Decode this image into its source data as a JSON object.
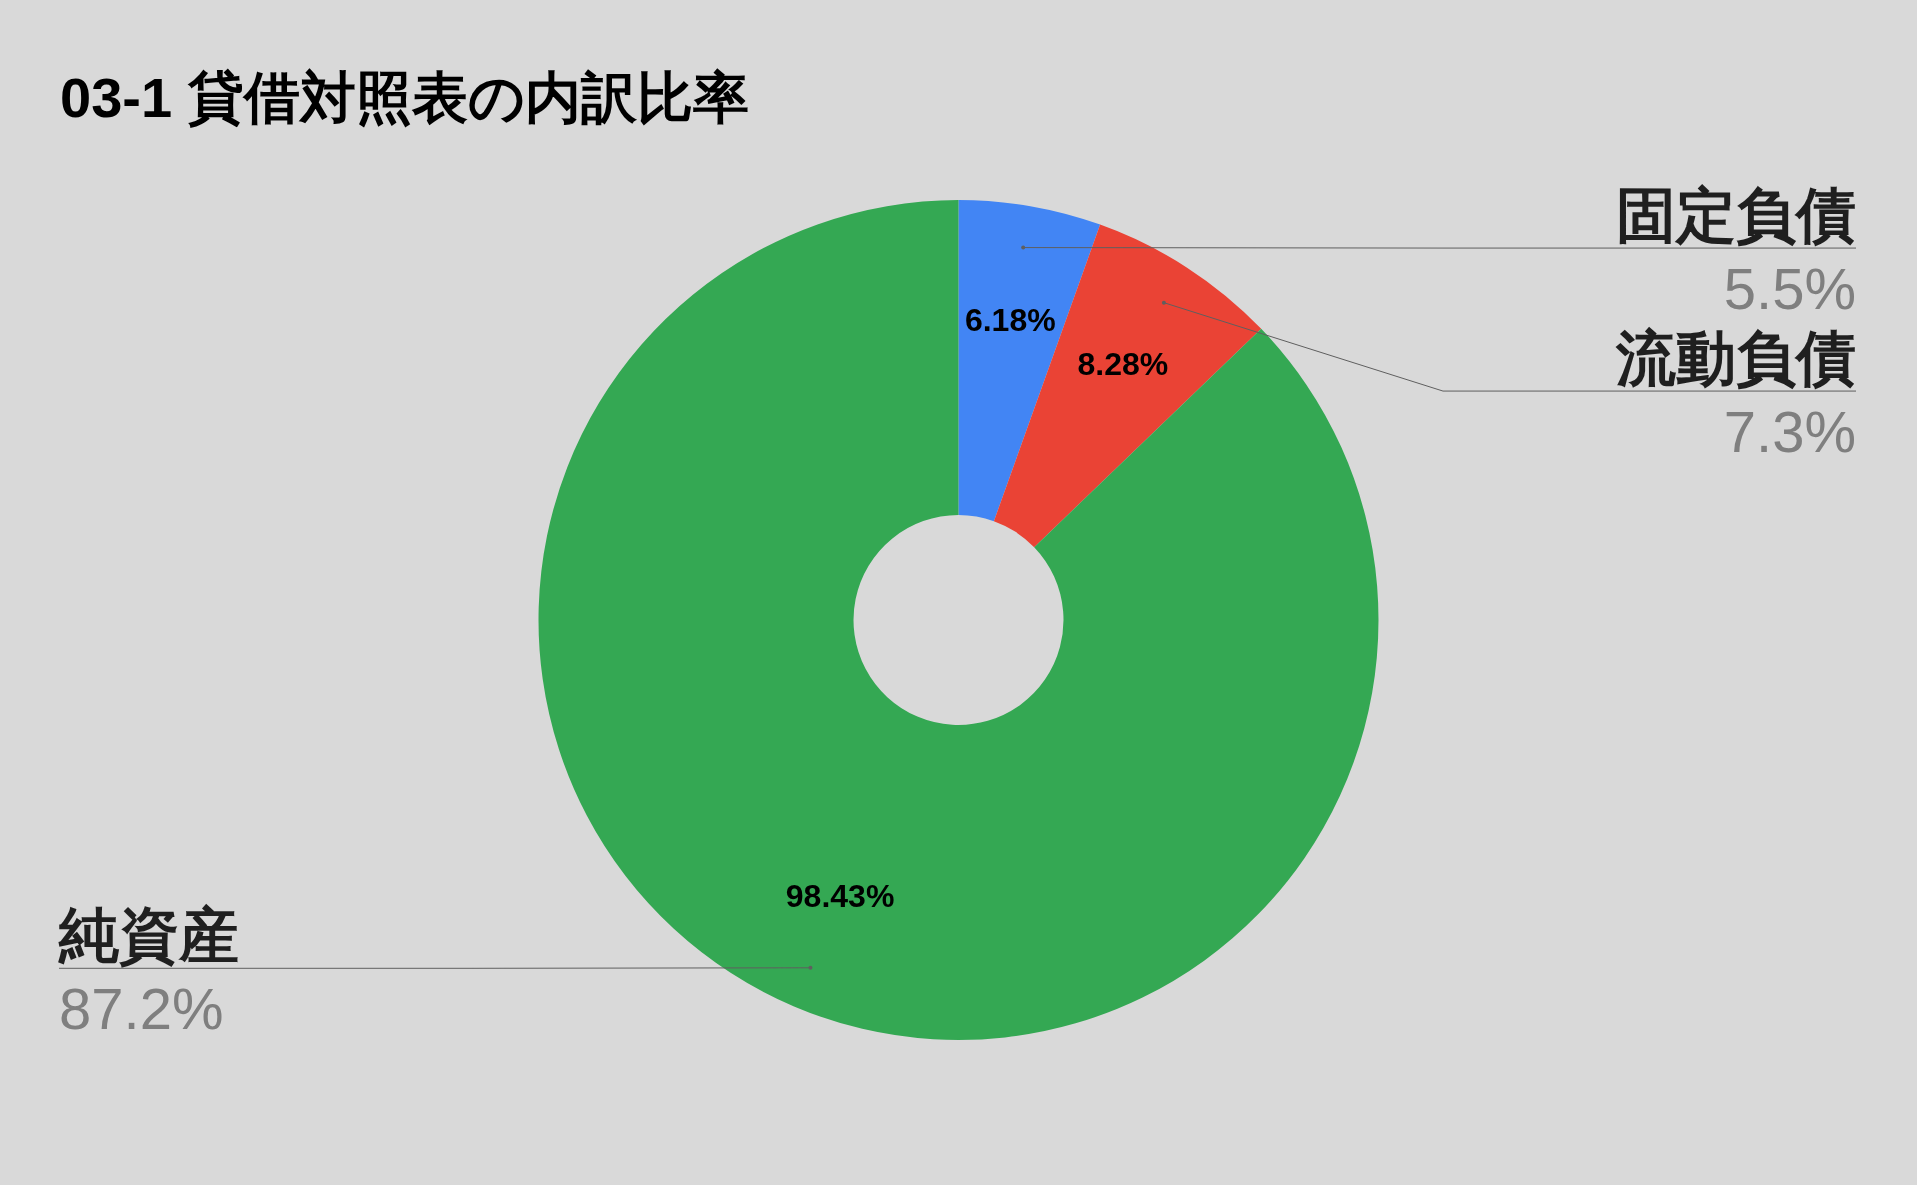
{
  "chart_data": {
    "type": "donut",
    "title": "03-1 貸借対照表の内訳比率",
    "categories": [
      "固定負債",
      "流動負債",
      "純資産"
    ],
    "values": [
      6.18,
      8.28,
      98.43
    ],
    "colors": [
      "#4285f4",
      "#ea4335",
      "#34a853"
    ],
    "value_labels": [
      "6.18%",
      "8.28%",
      "98.43%"
    ],
    "annotations": [
      "5.5%",
      "7.3%",
      "87.2%"
    ]
  }
}
